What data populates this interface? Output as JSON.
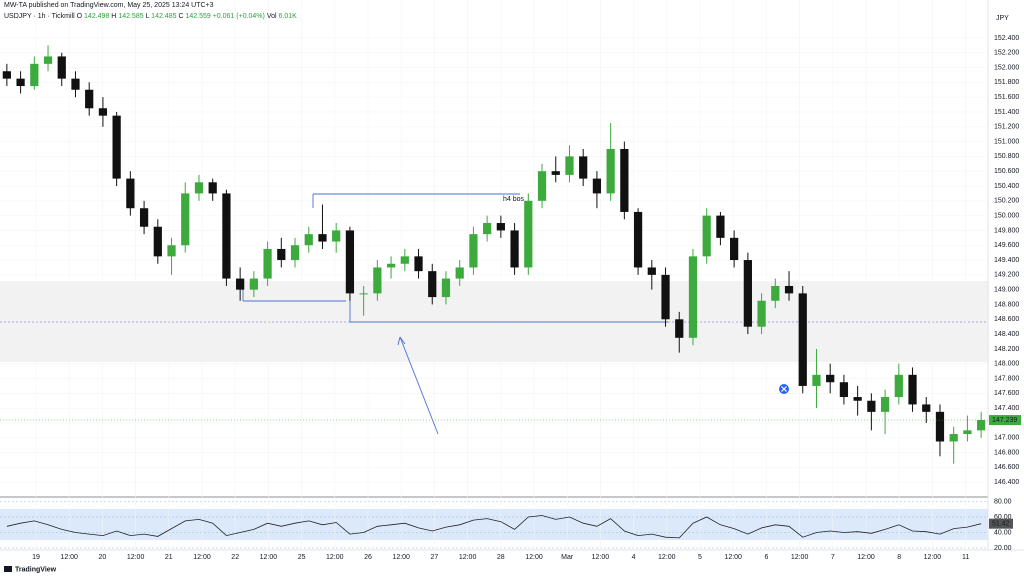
{
  "chart_data": {
    "type": "candlestick",
    "title": "MW-TA published on TradingView.com, May 25, 2025 13:24 UTC+3",
    "symbol": "USDJPY · 1h · Tickmill",
    "ohlc_legend": [
      {
        "label": "O",
        "value": 142.498
      },
      {
        "label": "H",
        "value": 142.585
      },
      {
        "label": "L",
        "value": 142.485
      },
      {
        "label": "C",
        "value": 142.559
      }
    ],
    "change": "+0.061 (+0.04%)",
    "volume": {
      "label": "Vol",
      "value": "6.01K"
    },
    "currency": "JPY",
    "annotation": "h4 bos",
    "brand": "TradingView",
    "x_labels": [
      "19",
      "12:00",
      "20",
      "12:00",
      "21",
      "12:00",
      "22",
      "12:00",
      "25",
      "12:00",
      "26",
      "12:00",
      "27",
      "12:00",
      "28",
      "12:00",
      "Mar",
      "12:00",
      "4",
      "12:00",
      "5",
      "12:00",
      "6",
      "12:00",
      "7",
      "12:00",
      "8",
      "12:00",
      "11"
    ],
    "up_color": "#3daa3d",
    "down_color": "#111111",
    "grid": true,
    "ylim": [
      146.2,
      152.75
    ],
    "yticks": [
      {
        "value": 146.4,
        "label": "146.400"
      },
      {
        "value": 146.6,
        "label": "146.600"
      },
      {
        "value": 146.8,
        "label": "146.800"
      },
      {
        "value": 147.0,
        "label": "147.000"
      },
      {
        "value": 147.2,
        "label": "147.200"
      },
      {
        "value": 147.4,
        "label": "147.400"
      },
      {
        "value": 147.6,
        "label": "147.600"
      },
      {
        "value": 147.8,
        "label": "147.800"
      },
      {
        "value": 148.0,
        "label": "148.000"
      },
      {
        "value": 148.2,
        "label": "148.200"
      },
      {
        "value": 148.4,
        "label": "148.400"
      },
      {
        "value": 148.6,
        "label": "148.600"
      },
      {
        "value": 148.8,
        "label": "148.800"
      },
      {
        "value": 149.0,
        "label": "149.000"
      },
      {
        "value": 149.2,
        "label": "149.200"
      },
      {
        "value": 149.4,
        "label": "149.400"
      },
      {
        "value": 149.6,
        "label": "149.600"
      },
      {
        "value": 149.8,
        "label": "149.800"
      },
      {
        "value": 150.0,
        "label": "150.000"
      },
      {
        "value": 150.2,
        "label": "150.200"
      },
      {
        "value": 150.4,
        "label": "150.400"
      },
      {
        "value": 150.6,
        "label": "150.600"
      },
      {
        "value": 150.8,
        "label": "150.800"
      },
      {
        "value": 151.0,
        "label": "151.000"
      },
      {
        "value": 151.2,
        "label": "151.200"
      },
      {
        "value": 151.4,
        "label": "151.400"
      },
      {
        "value": 151.6,
        "label": "151.600"
      },
      {
        "value": 151.8,
        "label": "151.800"
      },
      {
        "value": 152.0,
        "label": "152.000"
      },
      {
        "value": 152.2,
        "label": "152.200"
      },
      {
        "value": 152.4,
        "label": "152.400"
      }
    ],
    "last_price": 147.239,
    "open": [
      151.95,
      151.85,
      151.75,
      152.05,
      152.15,
      151.85,
      151.7,
      151.45,
      151.35,
      150.5,
      150.1,
      149.85,
      149.45,
      149.6,
      150.3,
      150.45,
      150.3,
      149.15,
      149.0,
      149.15,
      149.55,
      149.4,
      149.6,
      149.75,
      149.65,
      149.8,
      148.95,
      148.95,
      149.3,
      149.35,
      149.45,
      149.25,
      148.9,
      149.15,
      149.3,
      149.75,
      149.9,
      149.8,
      149.3,
      150.2,
      150.6,
      150.55,
      150.8,
      150.5,
      150.3,
      150.9,
      150.05,
      149.3,
      149.2,
      148.6,
      148.35,
      149.45,
      150.0,
      149.7,
      149.4,
      148.5,
      148.85,
      149.05,
      148.95,
      147.7,
      147.85,
      147.75,
      147.55,
      147.5,
      147.35,
      147.55,
      147.85,
      147.45,
      147.35,
      146.95,
      147.05,
      147.1
    ],
    "high": [
      152.05,
      151.95,
      152.15,
      152.3,
      152.2,
      151.95,
      151.8,
      151.6,
      151.4,
      150.6,
      150.2,
      149.95,
      149.7,
      150.45,
      150.55,
      150.5,
      150.35,
      149.3,
      149.25,
      149.65,
      149.7,
      149.7,
      149.85,
      150.15,
      149.9,
      149.85,
      149.05,
      149.4,
      149.45,
      149.55,
      149.55,
      149.35,
      149.25,
      149.4,
      149.85,
      150.0,
      150.0,
      149.9,
      150.3,
      150.7,
      150.8,
      150.95,
      150.9,
      150.6,
      151.25,
      151.0,
      150.1,
      149.4,
      149.3,
      148.7,
      149.55,
      150.1,
      150.05,
      149.8,
      149.5,
      148.95,
      149.15,
      149.25,
      149.05,
      148.2,
      148.0,
      147.85,
      147.7,
      147.6,
      147.65,
      148.0,
      147.95,
      147.55,
      147.45,
      147.15,
      147.3,
      147.35
    ],
    "low": [
      151.75,
      151.65,
      151.7,
      151.95,
      151.75,
      151.6,
      151.35,
      151.2,
      150.4,
      150.0,
      149.75,
      149.35,
      149.2,
      149.5,
      150.2,
      150.2,
      149.05,
      148.85,
      148.9,
      149.05,
      149.3,
      149.3,
      149.5,
      149.55,
      149.5,
      148.85,
      148.65,
      148.85,
      149.15,
      149.25,
      149.15,
      148.8,
      148.8,
      149.05,
      149.2,
      149.65,
      149.7,
      149.2,
      149.2,
      150.1,
      150.45,
      150.45,
      150.4,
      150.1,
      150.2,
      149.95,
      149.2,
      149.0,
      148.5,
      148.15,
      148.25,
      149.35,
      149.6,
      149.3,
      148.4,
      148.4,
      148.75,
      148.85,
      147.6,
      147.4,
      147.6,
      147.45,
      147.3,
      147.1,
      147.05,
      147.45,
      147.35,
      147.2,
      146.75,
      146.65,
      146.95,
      147.0
    ],
    "close": [
      151.85,
      151.75,
      152.05,
      152.15,
      151.85,
      151.7,
      151.45,
      151.35,
      150.5,
      150.1,
      149.85,
      149.45,
      149.6,
      150.3,
      150.45,
      150.3,
      149.15,
      149.0,
      149.15,
      149.55,
      149.4,
      149.6,
      149.75,
      149.65,
      149.8,
      148.95,
      148.95,
      149.3,
      149.35,
      149.45,
      149.25,
      148.9,
      149.15,
      149.3,
      149.75,
      149.9,
      149.8,
      149.3,
      150.2,
      150.6,
      150.55,
      150.8,
      150.5,
      150.3,
      150.9,
      150.05,
      149.3,
      149.2,
      148.6,
      148.35,
      149.45,
      150.0,
      149.7,
      149.4,
      148.5,
      148.85,
      149.05,
      148.95,
      147.7,
      147.85,
      147.75,
      147.55,
      147.5,
      147.35,
      147.55,
      147.85,
      147.45,
      147.35,
      146.95,
      147.05,
      147.1,
      147.24
    ],
    "rsi": {
      "color": "#222222",
      "ylim": [
        20,
        82
      ],
      "yticks": [
        {
          "value": 20,
          "label": "20.00"
        },
        {
          "value": 40,
          "label": "40.00"
        },
        {
          "value": 60,
          "label": "60.00"
        },
        {
          "value": 80,
          "label": "80.00"
        }
      ],
      "last": 51.42,
      "values": [
        48,
        52,
        55,
        50,
        44,
        40,
        38,
        36,
        42,
        36,
        38,
        35,
        45,
        55,
        57,
        52,
        36,
        40,
        44,
        52,
        48,
        52,
        55,
        50,
        53,
        38,
        40,
        48,
        50,
        52,
        46,
        42,
        47,
        50,
        56,
        58,
        54,
        44,
        60,
        62,
        57,
        60,
        52,
        48,
        58,
        42,
        36,
        38,
        34,
        33,
        52,
        60,
        50,
        45,
        38,
        46,
        50,
        48,
        34,
        40,
        42,
        40,
        41,
        39,
        44,
        50,
        42,
        41,
        38,
        45,
        47,
        51.42
      ]
    }
  }
}
